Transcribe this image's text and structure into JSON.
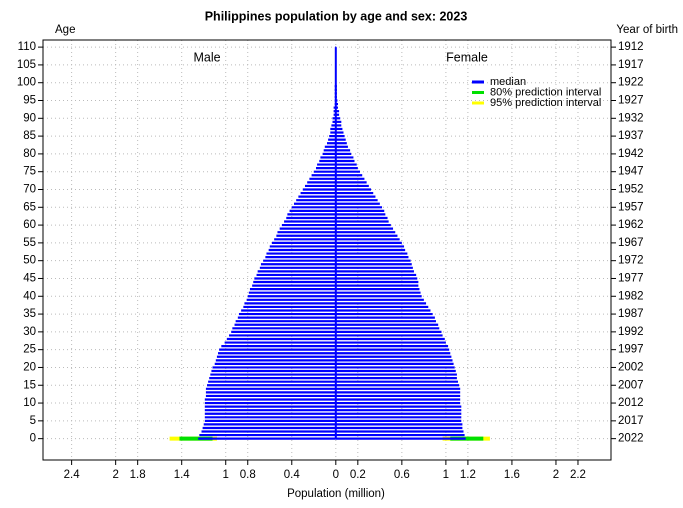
{
  "chart_data": {
    "type": "pyramid",
    "title": "Philippines population by age and sex: 2023",
    "y_label": "Age",
    "y2_label": "Year of birth",
    "x_label": "Population (million)",
    "y": [
      0,
      1,
      2,
      3,
      4,
      5,
      6,
      7,
      8,
      9,
      10,
      11,
      12,
      13,
      14,
      15,
      16,
      17,
      18,
      19,
      20,
      21,
      22,
      23,
      24,
      25,
      26,
      27,
      28,
      29,
      30,
      31,
      32,
      33,
      34,
      35,
      36,
      37,
      38,
      39,
      40,
      41,
      42,
      43,
      44,
      45,
      46,
      47,
      48,
      49,
      50,
      51,
      52,
      53,
      54,
      55,
      56,
      57,
      58,
      59,
      60,
      61,
      62,
      63,
      64,
      65,
      66,
      67,
      68,
      69,
      70,
      71,
      72,
      73,
      74,
      75,
      76,
      77,
      78,
      79,
      80,
      81,
      82,
      83,
      84,
      85,
      86,
      87,
      88,
      89,
      90,
      91,
      92,
      93,
      94,
      95,
      96,
      97,
      98,
      99,
      100,
      101,
      102,
      103,
      104,
      105,
      106,
      107,
      108,
      109,
      110
    ],
    "series": [
      {
        "name": "Male",
        "side": "left",
        "color": "#0000ff",
        "values": [
          1.25,
          1.24,
          1.22,
          1.21,
          1.2,
          1.19,
          1.19,
          1.19,
          1.19,
          1.19,
          1.19,
          1.19,
          1.18,
          1.18,
          1.18,
          1.17,
          1.16,
          1.15,
          1.14,
          1.13,
          1.12,
          1.1,
          1.09,
          1.08,
          1.07,
          1.06,
          1.04,
          1.01,
          0.99,
          0.97,
          0.95,
          0.94,
          0.92,
          0.91,
          0.89,
          0.88,
          0.86,
          0.84,
          0.83,
          0.81,
          0.8,
          0.79,
          0.78,
          0.76,
          0.75,
          0.74,
          0.72,
          0.71,
          0.69,
          0.68,
          0.66,
          0.64,
          0.63,
          0.61,
          0.6,
          0.58,
          0.56,
          0.54,
          0.53,
          0.51,
          0.49,
          0.47,
          0.45,
          0.44,
          0.42,
          0.4,
          0.38,
          0.36,
          0.34,
          0.32,
          0.3,
          0.28,
          0.26,
          0.24,
          0.22,
          0.2,
          0.18,
          0.17,
          0.15,
          0.14,
          0.12,
          0.11,
          0.1,
          0.08,
          0.07,
          0.06,
          0.05,
          0.05,
          0.04,
          0.03,
          0.03,
          0.02,
          0.02,
          0.02,
          0.01,
          0.01,
          0.01,
          0.01,
          0.01,
          0.01,
          0.005,
          0.005,
          0.005,
          0.005,
          0.005,
          0.003,
          0.003,
          0.003,
          0.003,
          0.003,
          0.003
        ],
        "interval_age": 0,
        "pi80": [
          1.12,
          1.42
        ],
        "pi95": [
          1.08,
          1.51
        ]
      },
      {
        "name": "Female",
        "side": "right",
        "color": "#0000ff",
        "values": [
          1.18,
          1.17,
          1.16,
          1.15,
          1.15,
          1.14,
          1.14,
          1.14,
          1.14,
          1.14,
          1.13,
          1.13,
          1.13,
          1.13,
          1.13,
          1.12,
          1.11,
          1.1,
          1.1,
          1.09,
          1.08,
          1.07,
          1.06,
          1.05,
          1.04,
          1.03,
          1.02,
          1,
          0.99,
          0.97,
          0.96,
          0.94,
          0.93,
          0.91,
          0.9,
          0.88,
          0.86,
          0.84,
          0.82,
          0.8,
          0.78,
          0.77,
          0.76,
          0.75,
          0.75,
          0.74,
          0.73,
          0.71,
          0.7,
          0.69,
          0.68,
          0.66,
          0.65,
          0.63,
          0.62,
          0.6,
          0.58,
          0.56,
          0.54,
          0.52,
          0.5,
          0.48,
          0.47,
          0.45,
          0.44,
          0.42,
          0.4,
          0.38,
          0.36,
          0.34,
          0.32,
          0.3,
          0.28,
          0.26,
          0.24,
          0.22,
          0.2,
          0.19,
          0.17,
          0.16,
          0.14,
          0.13,
          0.11,
          0.1,
          0.09,
          0.08,
          0.07,
          0.06,
          0.05,
          0.05,
          0.04,
          0.03,
          0.03,
          0.02,
          0.02,
          0.015,
          0.01,
          0.01,
          0.01,
          0.01,
          0.005,
          0.005,
          0.005,
          0.005,
          0.005,
          0.003,
          0.003,
          0.003,
          0.003,
          0.003,
          0.003
        ],
        "interval_age": 0,
        "pi80": [
          1.04,
          1.34
        ],
        "pi95": [
          0.97,
          1.4
        ]
      }
    ],
    "legend": [
      {
        "name": "median",
        "color": "#0000ff"
      },
      {
        "name": "80% prediction interval",
        "color": "#00e000"
      },
      {
        "name": "95% prediction interval",
        "color": "#ffff00"
      }
    ],
    "xlim": [
      -2.66,
      2.5
    ],
    "xticks": [
      {
        "value": -2.4,
        "label": "2.4"
      },
      {
        "value": -2,
        "label": "2"
      },
      {
        "value": -1.8,
        "label": "1.8"
      },
      {
        "value": -1.4,
        "label": "1.4"
      },
      {
        "value": -1,
        "label": "1"
      },
      {
        "value": -0.8,
        "label": "0.8"
      },
      {
        "value": -0.4,
        "label": "0.4"
      },
      0,
      0.2,
      0.6,
      1,
      1.2,
      1.6,
      2,
      2.2
    ],
    "ylim": [
      -6,
      112
    ],
    "yticks": [
      0,
      5,
      10,
      15,
      20,
      25,
      30,
      35,
      40,
      45,
      50,
      55,
      60,
      65,
      70,
      75,
      80,
      85,
      90,
      95,
      100,
      105,
      110
    ],
    "y2lim": [
      2028,
      1910
    ],
    "y2ticks": [
      2022,
      2017,
      2012,
      2007,
      2002,
      1997,
      1992,
      1987,
      1982,
      1977,
      1972,
      1967,
      1962,
      1957,
      1952,
      1947,
      1942,
      1937,
      1932,
      1927,
      1922,
      1917,
      1912
    ],
    "grid": true
  }
}
